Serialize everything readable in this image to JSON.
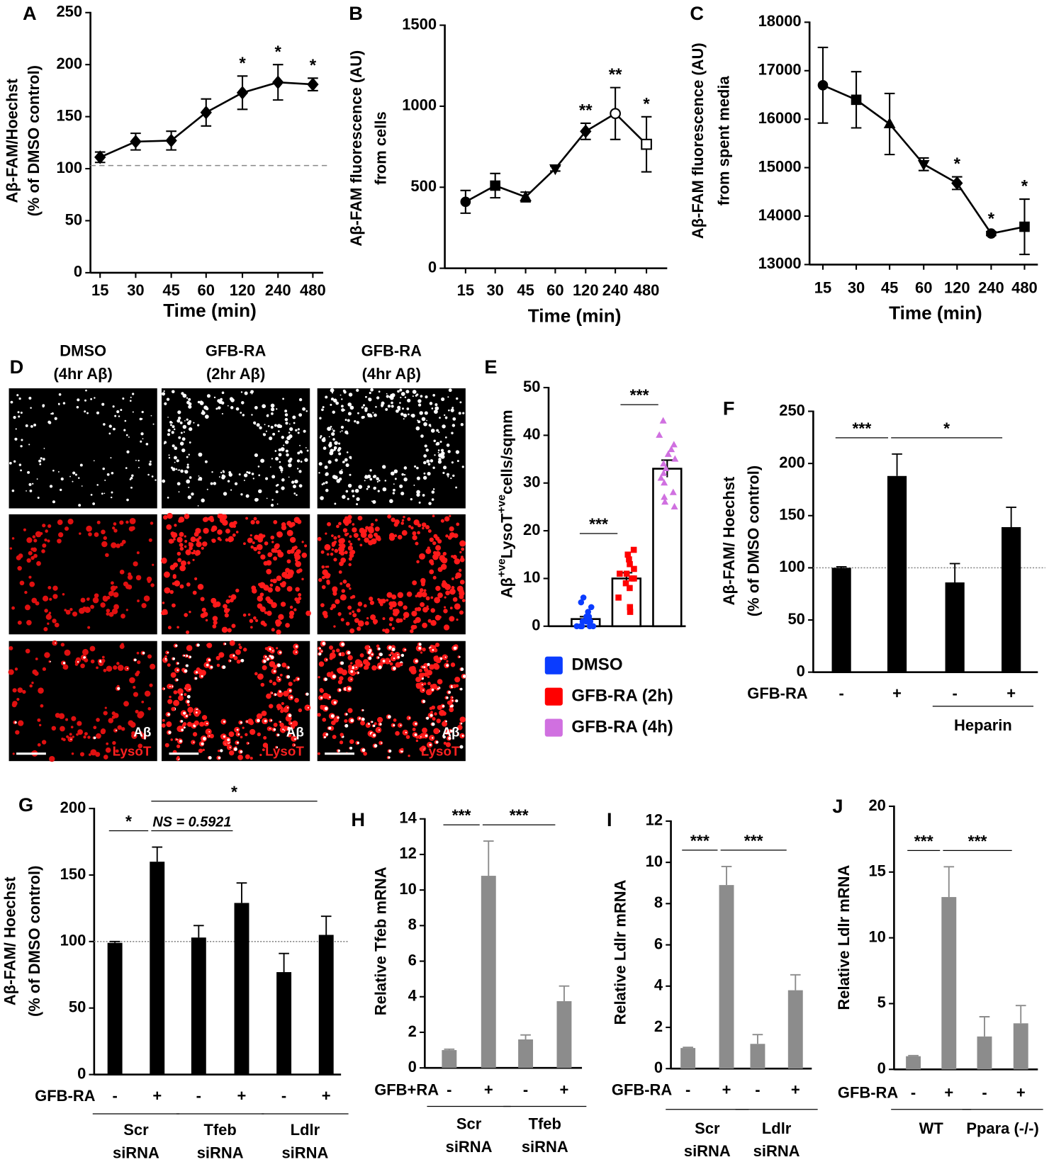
{
  "chart_data": [
    {
      "type": "line",
      "panel": "A",
      "ylabel": [
        "Aβ-FAM/Hoechst",
        "(% of DMSO control)"
      ],
      "xlabel": "Time (min)",
      "categories": [
        "15",
        "30",
        "45",
        "60",
        "120",
        "240",
        "480"
      ],
      "values": [
        111,
        126,
        127,
        154,
        173,
        183,
        181
      ],
      "errors": [
        5,
        8,
        9,
        13,
        16,
        17,
        6
      ],
      "significance": [
        null,
        null,
        null,
        null,
        "*",
        "*",
        "*"
      ],
      "markers": [
        "diamond",
        "diamond",
        "diamond",
        "diamond",
        "diamond",
        "diamond",
        "diamond"
      ],
      "color": "#000000",
      "reference_line": 103,
      "ylim": [
        0,
        250
      ],
      "yticks": [
        0,
        50,
        100,
        150,
        200,
        250
      ]
    },
    {
      "type": "line",
      "panel": "B",
      "ylabel": [
        "Aβ-FAM fluorescence (AU)",
        "from cells"
      ],
      "xlabel": "Time (min)",
      "categories": [
        "15",
        "30",
        "45",
        "60",
        "120",
        "240",
        "480"
      ],
      "values": [
        410,
        510,
        440,
        615,
        845,
        955,
        765
      ],
      "errors": [
        70,
        75,
        30,
        15,
        50,
        160,
        170
      ],
      "significance": [
        null,
        null,
        null,
        null,
        "**",
        "**",
        "*"
      ],
      "markers": [
        "circle",
        "square",
        "triangle",
        "triangle-down",
        "diamond",
        "open-circle",
        "open-square"
      ],
      "color": "#000000",
      "ylim": [
        0,
        1500
      ],
      "yticks": [
        0,
        500,
        1000,
        1500
      ]
    },
    {
      "type": "line",
      "panel": "C",
      "ylabel": [
        "Aβ-FAM fluorescence (AU)",
        "from spent media"
      ],
      "xlabel": "Time (min)",
      "categories": [
        "15",
        "30",
        "45",
        "60",
        "120",
        "240",
        "480"
      ],
      "values": [
        16700,
        16400,
        15900,
        15070,
        14680,
        13640,
        13780
      ],
      "errors": [
        780,
        580,
        630,
        130,
        130,
        40,
        570
      ],
      "significance": [
        null,
        null,
        null,
        null,
        "*",
        "*",
        "*"
      ],
      "markers": [
        "circle",
        "square",
        "triangle",
        "triangle-down",
        "diamond",
        "circle",
        "square"
      ],
      "color": "#000000",
      "ylim": [
        13000,
        18000
      ],
      "yticks": [
        13000,
        14000,
        15000,
        16000,
        17000,
        18000
      ]
    },
    {
      "type": "scatter-bar",
      "panel": "E",
      "ylabel_parts": [
        {
          "text": "Aβ"
        },
        {
          "text": "+ve",
          "sup": true
        },
        {
          "text": "LysoT"
        },
        {
          "text": "+ve",
          "sup": true
        },
        {
          "text": "cells/sqmm"
        }
      ],
      "series": [
        {
          "name": "DMSO",
          "color": "#0a3cff",
          "marker": "circle",
          "mean": 1.5,
          "error": 0.5,
          "points": [
            0,
            0,
            0,
            0,
            0,
            1,
            1,
            1,
            1,
            2,
            2,
            3,
            4,
            5,
            6
          ]
        },
        {
          "name": "GFB-RA (2h)",
          "color": "#ff0000",
          "marker": "square",
          "mean": 10,
          "error": 1.2,
          "points": [
            3,
            4,
            6,
            8,
            9,
            10,
            10,
            11,
            11,
            12,
            13,
            14,
            15,
            16
          ]
        },
        {
          "name": "GFB-RA (4h)",
          "color": "#d070e0",
          "marker": "triangle",
          "mean": 33,
          "error": 1.8,
          "points": [
            25,
            26,
            27,
            28,
            30,
            31,
            32,
            33,
            34,
            35,
            36,
            37,
            38,
            40,
            43
          ]
        }
      ],
      "comparisons": [
        {
          "from": 0,
          "to": 1,
          "label": "***"
        },
        {
          "from": 1,
          "to": 2,
          "label": "***"
        }
      ],
      "ylim": [
        0,
        50
      ],
      "yticks": [
        0,
        10,
        20,
        30,
        40,
        50
      ]
    },
    {
      "type": "bar",
      "panel": "F",
      "ylabel": [
        "Aβ-FAM/ Hoechst",
        "(% of DMSO control)"
      ],
      "row_label": "GFB-RA",
      "condition_labels": [
        "-",
        "+",
        "-",
        "+"
      ],
      "values": [
        100,
        188,
        86,
        139
      ],
      "errors": [
        1,
        21,
        18,
        19
      ],
      "color": "#000000",
      "groups": [
        {
          "label": [
            "Heparin"
          ],
          "from": 2,
          "to": 3
        }
      ],
      "comparisons": [
        {
          "from": 0,
          "to": 1,
          "label": "***"
        },
        {
          "from": 1,
          "to": 3,
          "label": "*"
        }
      ],
      "reference_line": 100,
      "ylim": [
        0,
        250
      ],
      "yticks": [
        0,
        50,
        100,
        150,
        200,
        250
      ]
    },
    {
      "type": "bar",
      "panel": "G",
      "ylabel": [
        "Aβ-FAM/ Hoechst",
        "(% of DMSO control)"
      ],
      "row_label": "GFB-RA",
      "condition_labels": [
        "-",
        "+",
        "-",
        "+",
        "-",
        "+"
      ],
      "values": [
        99,
        160,
        103,
        129,
        77,
        105
      ],
      "errors": [
        1,
        11,
        9,
        15,
        14,
        14
      ],
      "color": "#000000",
      "groups": [
        {
          "label": [
            "Scr",
            "siRNA"
          ],
          "from": 0,
          "to": 1
        },
        {
          "label": [
            "Tfeb",
            "siRNA"
          ],
          "from": 2,
          "to": 3
        },
        {
          "label": [
            "Ldlr",
            "siRNA"
          ],
          "from": 4,
          "to": 5
        }
      ],
      "comparisons": [
        {
          "from": 0,
          "to": 1,
          "label": "*"
        },
        {
          "from": 1,
          "to": 3,
          "label": "NS = 0.5921",
          "italic": true
        },
        {
          "from": 1,
          "to": 5,
          "label": "*"
        }
      ],
      "reference_line": 100,
      "ylim": [
        0,
        200
      ],
      "yticks": [
        0,
        50,
        100,
        150,
        200
      ]
    },
    {
      "type": "bar",
      "panel": "H",
      "ylabel": [
        "Relative Tfeb mRNA"
      ],
      "row_label": "GFB+RA",
      "condition_labels": [
        "-",
        "+",
        "-",
        "+"
      ],
      "values": [
        1,
        10.8,
        1.6,
        3.75
      ],
      "errors": [
        0.05,
        1.95,
        0.25,
        0.85
      ],
      "color": "#8c8c8c",
      "groups": [
        {
          "label": [
            "Scr",
            "siRNA"
          ],
          "from": 0,
          "to": 1
        },
        {
          "label": [
            "Tfeb",
            "siRNA"
          ],
          "from": 2,
          "to": 3
        }
      ],
      "comparisons": [
        {
          "from": 0,
          "to": 1,
          "label": "***"
        },
        {
          "from": 1,
          "to": 3,
          "label": "***"
        }
      ],
      "ylim": [
        0,
        14
      ],
      "yticks": [
        0,
        2,
        4,
        6,
        8,
        10,
        12,
        14
      ]
    },
    {
      "type": "bar",
      "panel": "I",
      "ylabel": [
        "Relative Ldlr mRNA"
      ],
      "row_label": "GFB-RA",
      "condition_labels": [
        "-",
        "+",
        "-",
        "+"
      ],
      "values": [
        1,
        8.9,
        1.2,
        3.8
      ],
      "errors": [
        0.03,
        0.9,
        0.45,
        0.75
      ],
      "color": "#8c8c8c",
      "groups": [
        {
          "label": [
            "Scr",
            "siRNA"
          ],
          "from": 0,
          "to": 1
        },
        {
          "label": [
            "Ldlr",
            "siRNA"
          ],
          "from": 2,
          "to": 3
        }
      ],
      "comparisons": [
        {
          "from": 0,
          "to": 1,
          "label": "***"
        },
        {
          "from": 1,
          "to": 3,
          "label": "***"
        }
      ],
      "ylim": [
        0,
        12
      ],
      "yticks": [
        0,
        2,
        4,
        6,
        8,
        10,
        12
      ]
    },
    {
      "type": "bar",
      "panel": "J",
      "ylabel": [
        "Relative Ldlr mRNA"
      ],
      "row_label": "GFB-RA",
      "condition_labels": [
        "-",
        "+",
        "-",
        "+"
      ],
      "values": [
        1,
        13.1,
        2.5,
        3.5
      ],
      "errors": [
        0.05,
        2.3,
        1.5,
        1.35
      ],
      "color": "#8c8c8c",
      "groups": [
        {
          "label": [
            "WT"
          ],
          "from": 0,
          "to": 1
        },
        {
          "label": [
            "Ppara (-/-)"
          ],
          "from": 2,
          "to": 3
        }
      ],
      "comparisons": [
        {
          "from": 0,
          "to": 1,
          "label": "***"
        },
        {
          "from": 1,
          "to": 3,
          "label": "***"
        }
      ],
      "ylim": [
        0,
        20
      ],
      "yticks": [
        0,
        5,
        10,
        15,
        20
      ]
    }
  ],
  "micrographs": {
    "panel": "D",
    "columns": [
      [
        "DMSO",
        "(4hr Aβ)"
      ],
      [
        "GFB-RA",
        "(2hr Aβ)"
      ],
      [
        "GFB-RA",
        "(4hr Aβ)"
      ]
    ],
    "overlay_labels": [
      "Aβ",
      "LysoT"
    ]
  }
}
